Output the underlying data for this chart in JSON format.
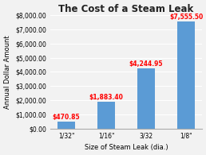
{
  "title": "The Cost of a Steam Leak",
  "xlabel": "Size of Steam Leak (dia.)",
  "ylabel": "Annual Dollar Amount",
  "categories": [
    "1/32\"",
    "1/16\"",
    "3/32",
    "1/8\""
  ],
  "values": [
    470.85,
    1883.4,
    4244.95,
    7555.5
  ],
  "labels": [
    "$470.85",
    "$1,883.40",
    "$4,244.95",
    "$7,555.50"
  ],
  "bar_color": "#5B9BD5",
  "label_color": "#FF0000",
  "ylim": [
    0,
    8000
  ],
  "yticks": [
    0,
    1000,
    2000,
    3000,
    4000,
    5000,
    6000,
    7000,
    8000
  ],
  "fig_background": "#F2F2F2",
  "plot_background": "#F2F2F2",
  "title_fontsize": 8.5,
  "axis_fontsize": 6.0,
  "tick_fontsize": 5.5,
  "label_fontsize": 5.5,
  "bar_width": 0.45
}
